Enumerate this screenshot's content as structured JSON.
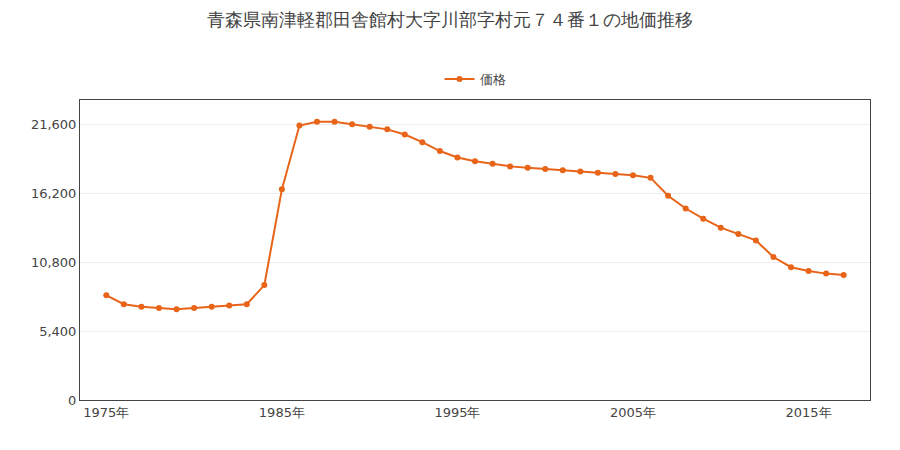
{
  "chart_data": {
    "type": "line",
    "title": "青森県南津軽郡田舎館村大字川部字村元７４番１の地価推移",
    "x": [
      1975,
      1976,
      1977,
      1978,
      1979,
      1980,
      1981,
      1982,
      1983,
      1984,
      1985,
      1986,
      1987,
      1988,
      1989,
      1990,
      1991,
      1992,
      1993,
      1994,
      1995,
      1996,
      1997,
      1998,
      1999,
      2000,
      2001,
      2002,
      2003,
      2004,
      2005,
      2006,
      2007,
      2008,
      2009,
      2010,
      2011,
      2012,
      2013,
      2014,
      2015,
      2016,
      2017
    ],
    "series": [
      {
        "name": "価格",
        "color": "#e86418",
        "marker": "circle",
        "values": [
          8200,
          7500,
          7300,
          7200,
          7100,
          7200,
          7300,
          7400,
          7500,
          9000,
          16500,
          21500,
          21800,
          21800,
          21600,
          21400,
          21200,
          20800,
          20200,
          19500,
          19000,
          18700,
          18500,
          18300,
          18200,
          18100,
          18000,
          17900,
          17800,
          17700,
          17600,
          17400,
          16000,
          15000,
          14200,
          13500,
          13000,
          12500,
          11200,
          10400,
          10100,
          9900,
          9800
        ]
      }
    ],
    "xlim": [
      1973.5,
      2018.5
    ],
    "xticks": [
      {
        "value": 1975,
        "label": "1975年"
      },
      {
        "value": 1985,
        "label": "1985年"
      },
      {
        "value": 1995,
        "label": "1995年"
      },
      {
        "value": 2005,
        "label": "2005年"
      },
      {
        "value": 2015,
        "label": "2015年"
      }
    ],
    "ylim": [
      0,
      23500
    ],
    "yticks": [
      0,
      {
        "value": 5400,
        "label": "5,400"
      },
      {
        "value": 10800,
        "label": "10,800"
      },
      {
        "value": 16200,
        "label": "16,200"
      },
      {
        "value": 21600,
        "label": "21,600"
      }
    ],
    "grid": "y",
    "legend": "top"
  }
}
